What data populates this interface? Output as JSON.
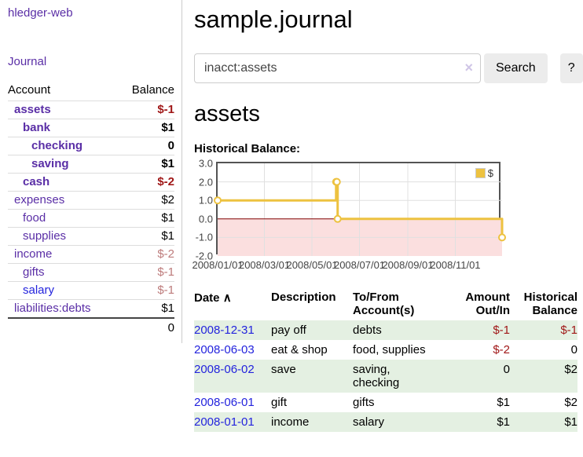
{
  "app": {
    "brand": "hledger-web",
    "nav_journal": "Journal"
  },
  "colors": {
    "link_purple": "#5a2ea6",
    "link_blue": "#2323dd",
    "negative": "#a01818",
    "negative_faded": "#bd7b7b",
    "row_green": "#e4f0e2",
    "series_gold": "#EDC240",
    "zero_line": "#800000",
    "negative_region": "#fbdfdf"
  },
  "sidebar": {
    "headers": {
      "account": "Account",
      "balance": "Balance"
    },
    "accounts": [
      {
        "name": "assets",
        "balance": "$-1",
        "depth": 1,
        "bold": true,
        "balance_class": "neg"
      },
      {
        "name": "bank",
        "balance": "$1",
        "depth": 2,
        "bold": true,
        "balance_class": ""
      },
      {
        "name": "checking",
        "balance": "0",
        "depth": 3,
        "bold": true,
        "balance_class": ""
      },
      {
        "name": "saving",
        "balance": "$1",
        "depth": 3,
        "bold": true,
        "balance_class": ""
      },
      {
        "name": "cash",
        "balance": "$-2",
        "depth": 2,
        "bold": true,
        "balance_class": "neg"
      },
      {
        "name": "expenses",
        "balance": "$2",
        "depth": 1,
        "bold": false,
        "balance_class": ""
      },
      {
        "name": "food",
        "balance": "$1",
        "depth": 2,
        "bold": false,
        "balance_class": ""
      },
      {
        "name": "supplies",
        "balance": "$1",
        "depth": 2,
        "bold": false,
        "balance_class": ""
      },
      {
        "name": "income",
        "balance": "$-2",
        "depth": 1,
        "bold": false,
        "balance_class": "fneg"
      },
      {
        "name": "gifts",
        "balance": "$-1",
        "depth": 2,
        "bold": false,
        "balance_class": "fneg"
      },
      {
        "name": "salary",
        "balance": "$-1",
        "depth": 2,
        "bold": false,
        "balance_class": "fneg",
        "link_color": "blue"
      },
      {
        "name": "liabilities:debts",
        "balance": "$1",
        "depth": 1,
        "bold": false,
        "balance_class": ""
      }
    ],
    "total": "0"
  },
  "main": {
    "title": "sample.journal",
    "search": {
      "value": "inacct:assets",
      "clear_icon": "×",
      "button": "Search",
      "help_button": "?"
    },
    "account_heading": "assets"
  },
  "chart_data": {
    "type": "line",
    "style": "step",
    "title": "Historical Balance:",
    "series": [
      {
        "name": "$",
        "color": "#EDC240",
        "points": [
          [
            "2008-01-01",
            1
          ],
          [
            "2008-06-01",
            2
          ],
          [
            "2008-06-02",
            2
          ],
          [
            "2008-06-03",
            0
          ],
          [
            "2008-12-31",
            -1
          ]
        ]
      }
    ],
    "ylim": [
      -2,
      3
    ],
    "yticks": [
      "3.0",
      "2.0",
      "1.0",
      "0.0",
      "-1.0",
      "-2.0"
    ],
    "xticks": [
      "2008/01/01",
      "2008/03/01",
      "2008/05/01",
      "2008/07/01",
      "2008/09/01",
      "2008/11/01"
    ],
    "xrange": [
      "2008-01-01",
      "2008-12-31"
    ],
    "grid": true,
    "legend_position": "top-right",
    "zero_line_color": "#800000",
    "negative_region_color": "#fbdfdf",
    "grid_color": "#e0e0e0"
  },
  "register": {
    "headers": {
      "date": "Date",
      "sort_icon": "∧",
      "description": "Description",
      "accounts": "To/From Account(s)",
      "amount": "Amount Out/In",
      "balance": "Historical Balance"
    },
    "rows": [
      {
        "date": "2008-12-31",
        "description": "pay off",
        "accounts": "debts",
        "amount": "$-1",
        "amount_class": "neg",
        "balance": "$-1",
        "balance_class": "neg",
        "shaded": true
      },
      {
        "date": "2008-06-03",
        "description": "eat & shop",
        "accounts": "food, supplies",
        "amount": "$-2",
        "amount_class": "neg",
        "balance": "0",
        "balance_class": "",
        "shaded": false
      },
      {
        "date": "2008-06-02",
        "description": "save",
        "accounts": "saving, checking",
        "amount": "0",
        "amount_class": "",
        "balance": "$2",
        "balance_class": "",
        "shaded": true
      },
      {
        "date": "2008-06-01",
        "description": "gift",
        "accounts": "gifts",
        "amount": "$1",
        "amount_class": "",
        "balance": "$2",
        "balance_class": "",
        "shaded": false
      },
      {
        "date": "2008-01-01",
        "description": "income",
        "accounts": "salary",
        "amount": "$1",
        "amount_class": "",
        "balance": "$1",
        "balance_class": "",
        "shaded": true
      }
    ]
  }
}
